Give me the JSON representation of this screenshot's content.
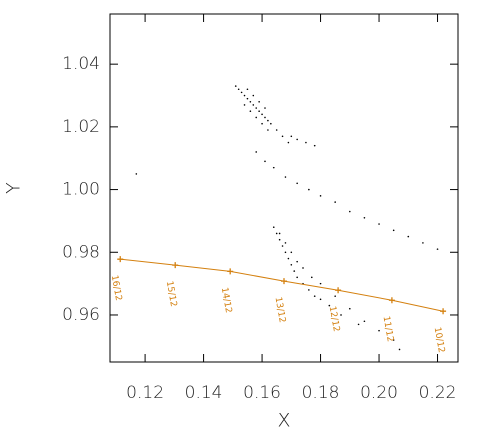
{
  "chart_data": {
    "type": "scatter",
    "x_label": "X",
    "y_label": "Y",
    "xlim": [
      0.108,
      0.227
    ],
    "ylim": [
      0.945,
      1.056
    ],
    "xticks": [
      0.12,
      0.14,
      0.16,
      0.18,
      {
        "value": 0.2,
        "label": "0.20"
      },
      0.22
    ],
    "yticks": [
      0.96,
      0.98,
      {
        "value": 1,
        "label": "1.00"
      },
      1.02,
      1.04
    ],
    "series": [
      {
        "type": "scatter",
        "color": "#000000",
        "x": [
          0.151,
          0.152,
          0.153,
          0.154,
          0.155,
          0.156,
          0.157,
          0.158,
          0.159,
          0.16,
          0.161,
          0.162,
          0.163,
          0.165,
          0.167,
          0.169,
          0.154,
          0.156,
          0.158,
          0.16,
          0.162,
          0.155,
          0.157,
          0.159,
          0.161,
          0.172,
          0.175,
          0.178,
          0.17,
          0.158,
          0.161,
          0.164,
          0.168,
          0.172,
          0.176,
          0.18,
          0.185,
          0.19,
          0.195,
          0.2,
          0.205,
          0.21,
          0.215,
          0.22,
          0.164,
          0.165,
          0.166,
          0.167,
          0.168,
          0.169,
          0.17,
          0.171,
          0.172,
          0.174,
          0.176,
          0.178,
          0.18,
          0.183,
          0.166,
          0.168,
          0.17,
          0.172,
          0.174,
          0.177,
          0.18,
          0.185,
          0.19,
          0.195,
          0.2,
          0.205,
          0.207,
          0.187,
          0.193,
          0.117
        ],
        "y": [
          1.033,
          1.032,
          1.031,
          1.03,
          1.029,
          1.028,
          1.027,
          1.026,
          1.025,
          1.024,
          1.023,
          1.022,
          1.021,
          1.019,
          1.017,
          1.015,
          1.027,
          1.025,
          1.023,
          1.021,
          1.019,
          1.032,
          1.03,
          1.028,
          1.026,
          1.016,
          1.015,
          1.014,
          1.017,
          1.012,
          1.009,
          1.007,
          1.004,
          1.002,
          1.0,
          0.998,
          0.996,
          0.993,
          0.991,
          0.989,
          0.987,
          0.985,
          0.983,
          0.981,
          0.988,
          0.986,
          0.984,
          0.982,
          0.98,
          0.978,
          0.976,
          0.974,
          0.972,
          0.97,
          0.968,
          0.966,
          0.965,
          0.963,
          0.986,
          0.983,
          0.98,
          0.977,
          0.975,
          0.972,
          0.97,
          0.966,
          0.962,
          0.958,
          0.955,
          0.952,
          0.949,
          0.96,
          0.957,
          1.005
        ]
      },
      {
        "type": "line",
        "color": "#d4800f",
        "x": [
          0.1115,
          0.1303,
          0.1491,
          0.1675,
          0.186,
          0.2044,
          0.2219
        ],
        "y": [
          0.9778,
          0.9759,
          0.9739,
          0.9708,
          0.9679,
          0.9647,
          0.9612
        ],
        "point_labels": [
          "16/12",
          "15/12",
          "14/12",
          "13/12",
          "12/12",
          "11/12",
          "10/12"
        ]
      }
    ]
  }
}
